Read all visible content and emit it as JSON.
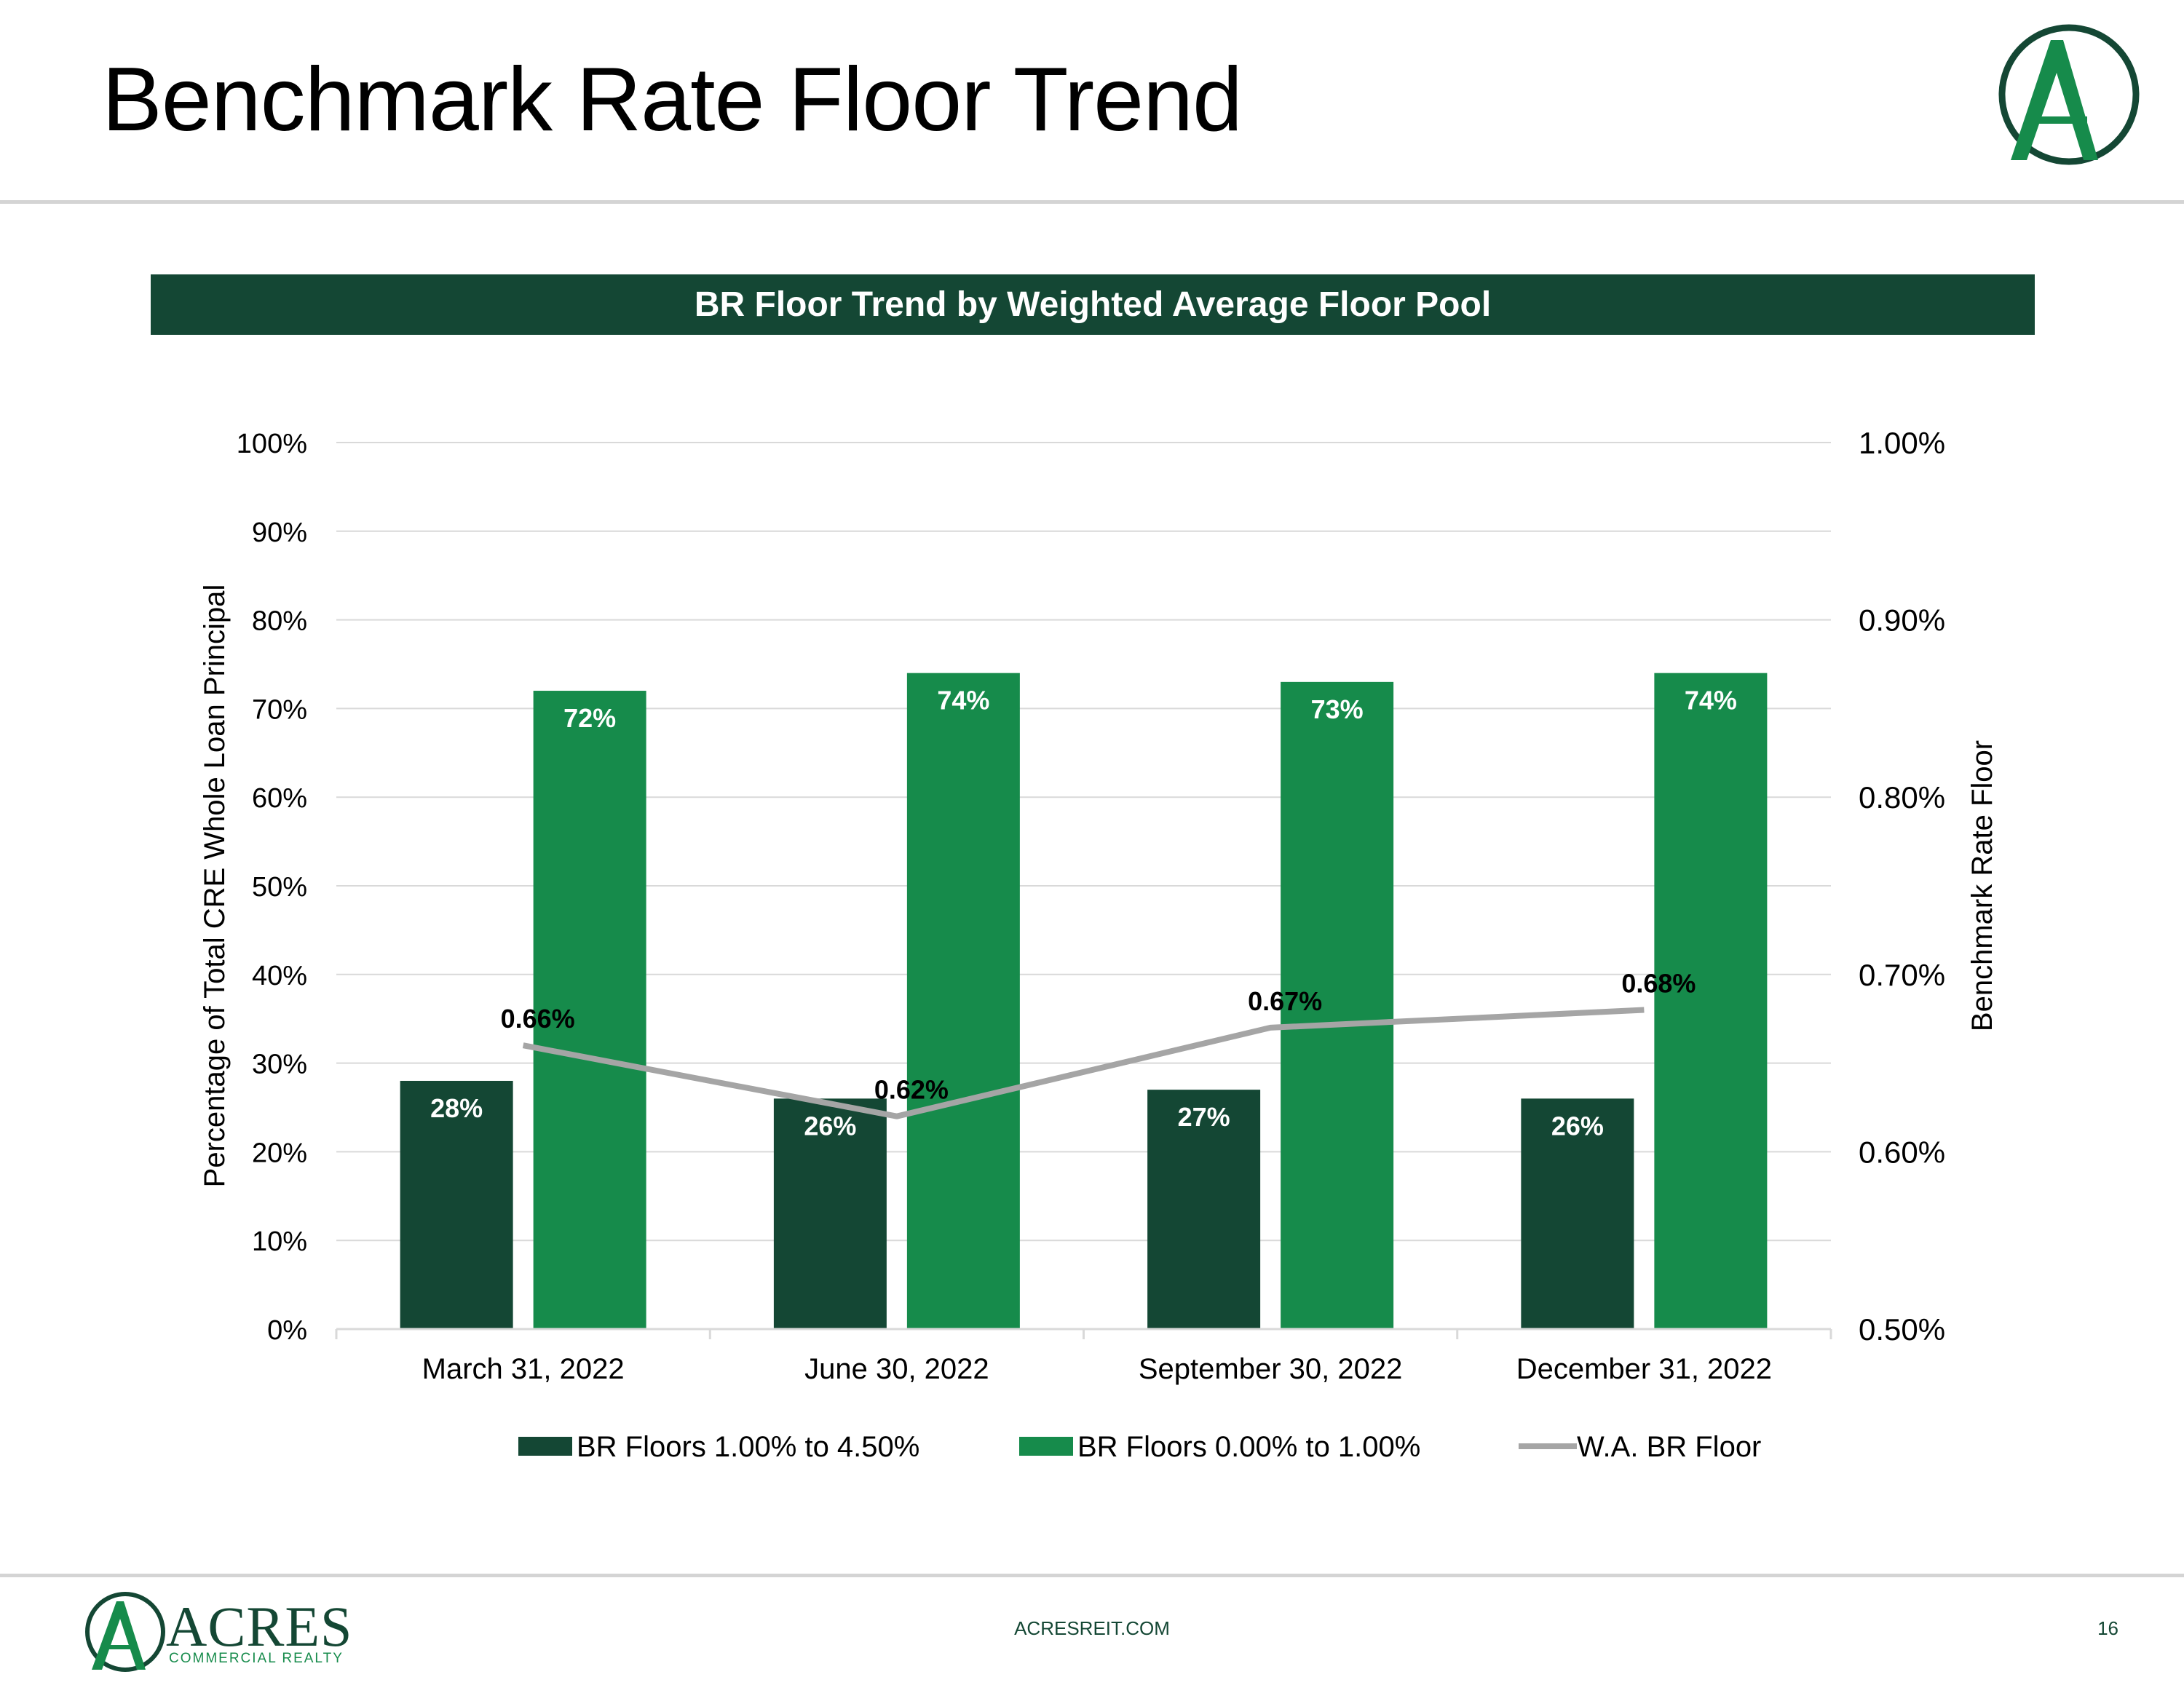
{
  "slide": {
    "title": "Benchmark Rate Floor Trend",
    "banner": "BR Floor Trend by Weighted Average Floor Pool"
  },
  "footer": {
    "brand": "ACRES",
    "brand_sub": "COMMERCIAL REALTY",
    "url": "ACRESREIT.COM",
    "page_number": "16"
  },
  "colors": {
    "dark_green": "#144734",
    "green": "#168b4b",
    "line_gray": "#a5a5a5",
    "grid": "#d9d9d9"
  },
  "chart_data": {
    "type": "bar",
    "categories": [
      "March 31, 2022",
      "June 30, 2022",
      "September 30, 2022",
      "December 31, 2022"
    ],
    "series": [
      {
        "name": "BR Floors 1.00% to 4.50%",
        "values": [
          28,
          26,
          27,
          26
        ],
        "labels": [
          "28%",
          "26%",
          "27%",
          "26%"
        ],
        "color": "#144734",
        "axis": "left"
      },
      {
        "name": "BR Floors 0.00% to 1.00%",
        "values": [
          72,
          74,
          73,
          74
        ],
        "labels": [
          "72%",
          "74%",
          "73%",
          "74%"
        ],
        "color": "#168b4b",
        "axis": "left"
      },
      {
        "name": "W.A. BR Floor",
        "type": "line",
        "values": [
          0.66,
          0.62,
          0.67,
          0.68
        ],
        "labels": [
          "0.66%",
          "0.62%",
          "0.67%",
          "0.68%"
        ],
        "color": "#a5a5a5",
        "axis": "right"
      }
    ],
    "ylabel": "Percentage of Total CRE Whole Loan Principal",
    "y2label": "Benchmark Rate Floor",
    "ylim": [
      0,
      100
    ],
    "y2lim": [
      0.5,
      1.0
    ],
    "yticks": [
      "0%",
      "10%",
      "20%",
      "30%",
      "40%",
      "50%",
      "60%",
      "70%",
      "80%",
      "90%",
      "100%"
    ],
    "y2ticks": [
      "0.50%",
      "0.60%",
      "0.70%",
      "0.80%",
      "0.90%",
      "1.00%"
    ],
    "grid": true,
    "legend_position": "bottom"
  }
}
